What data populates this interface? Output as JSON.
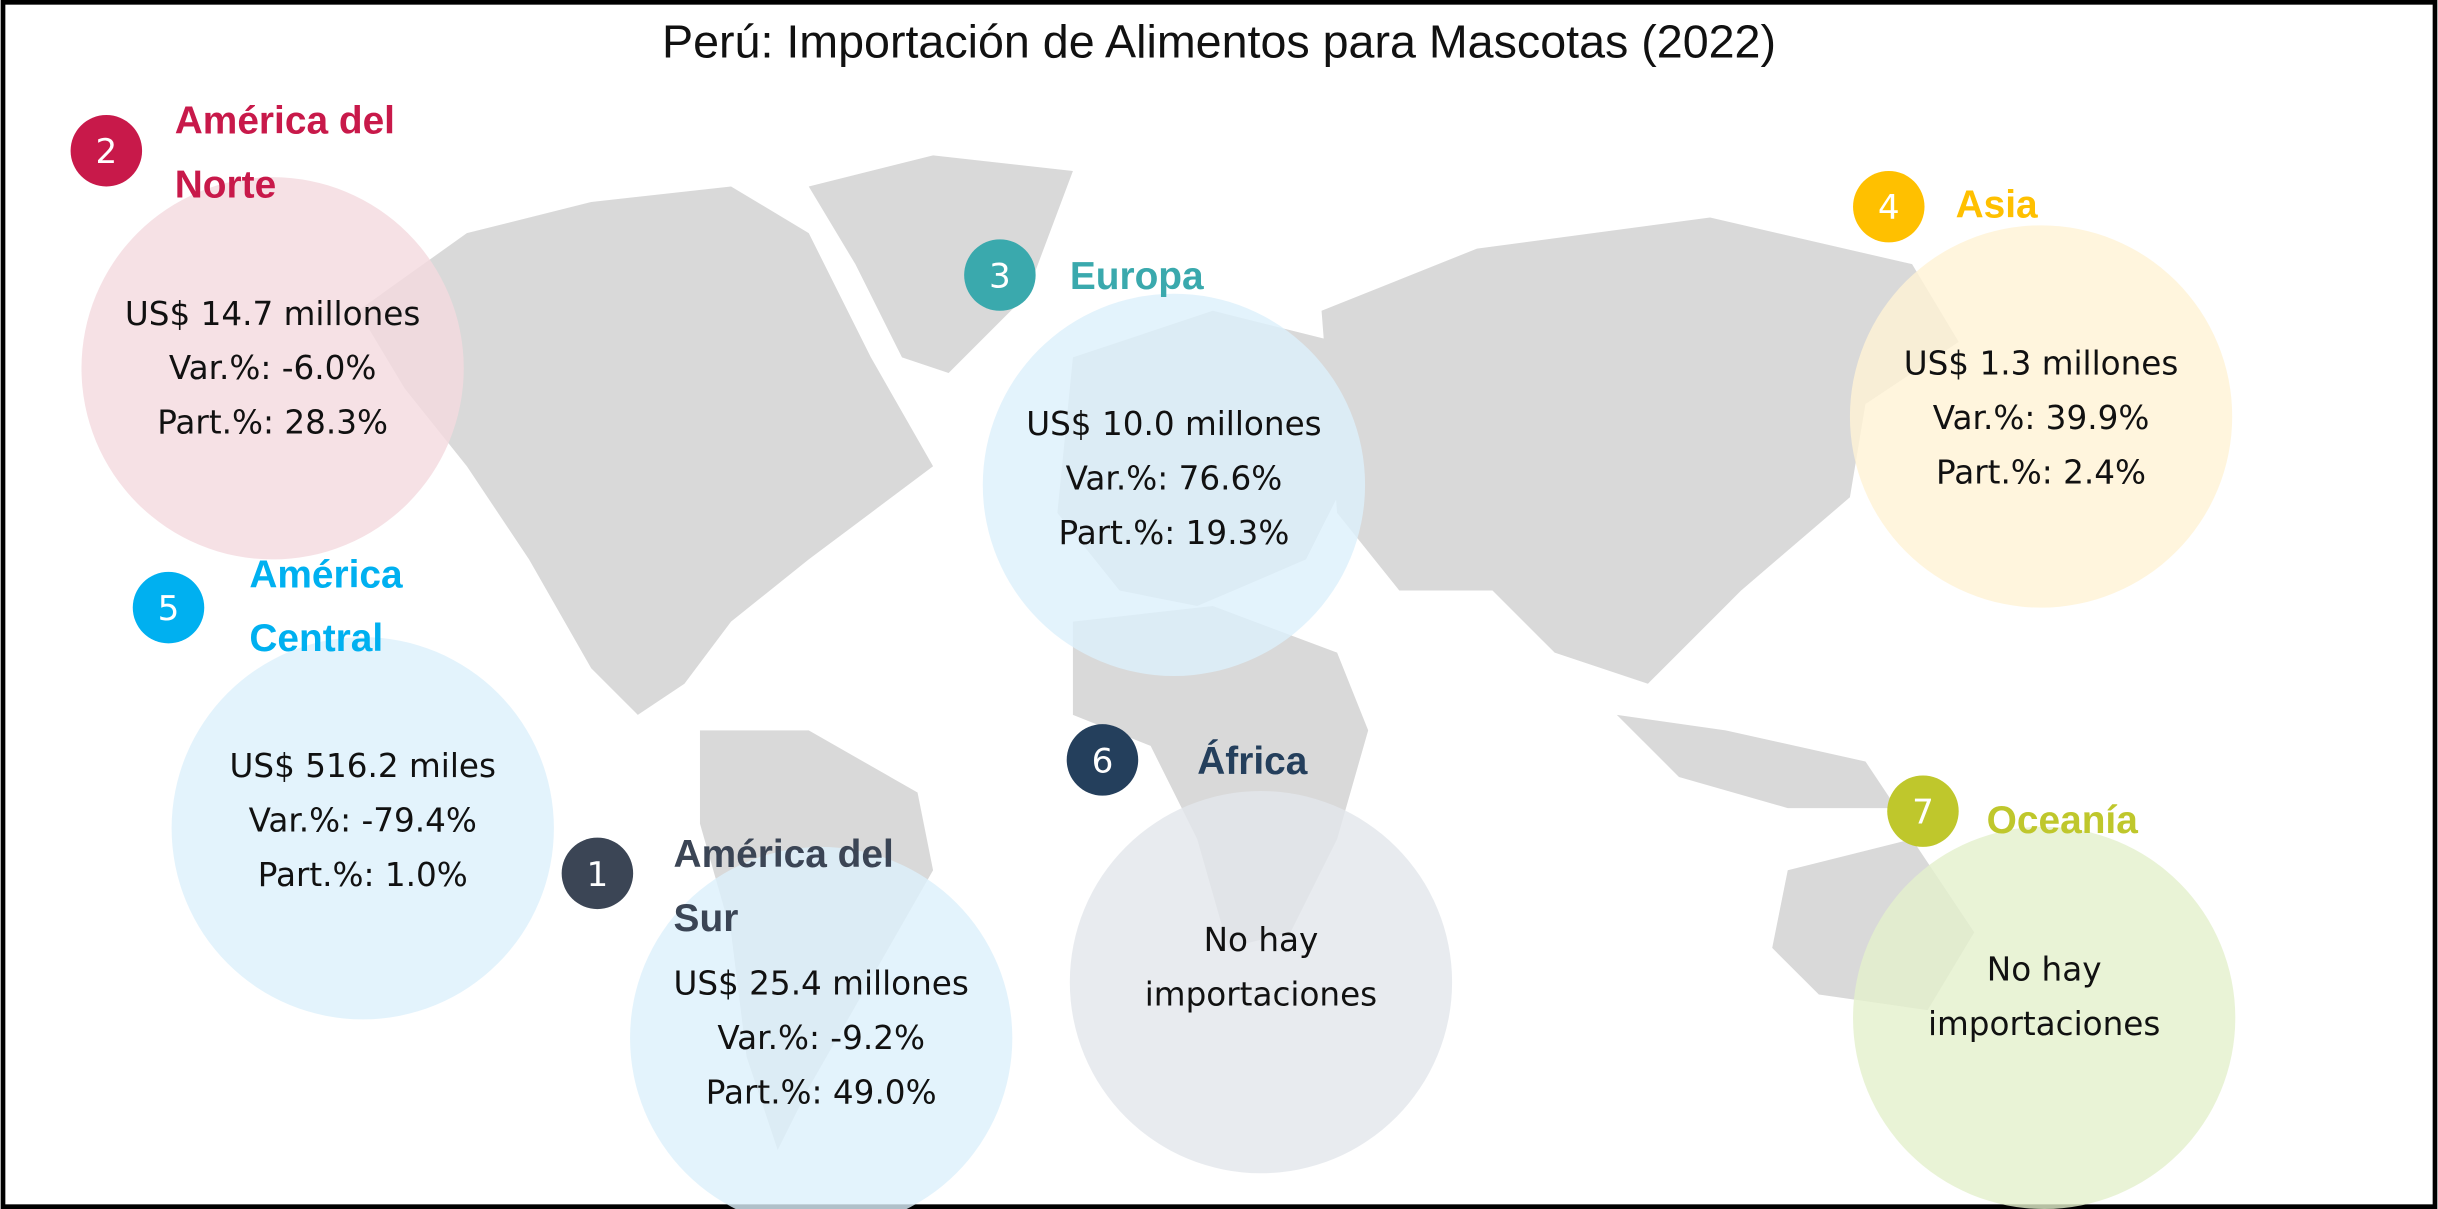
{
  "title": "Perú: Importación de Alimentos para Mascotas (2022)",
  "regions": [
    {
      "rank": 2,
      "name": "América del Norte",
      "color": "#c8194a",
      "fill": "#f4d9df",
      "lines": [
        "US$ 14.7 millones",
        "Var.%: -6.0%",
        "Part.%: 28.3%"
      ]
    },
    {
      "rank": 3,
      "name": "Europa",
      "color": "#3aa9ad",
      "fill": "#dcf0fb",
      "lines": [
        "US$ 10.0 millones",
        "Var.%: 76.6%",
        "Part.%: 19.3%"
      ]
    },
    {
      "rank": 4,
      "name": "Asia",
      "color": "#ffc000",
      "fill": "#fff3d4",
      "lines": [
        "US$ 1.3 millones",
        "Var.%: 39.9%",
        "Part.%: 2.4%"
      ]
    },
    {
      "rank": 5,
      "name": "América Central",
      "color": "#00b0f0",
      "fill": "#dcf0fb",
      "lines": [
        "US$ 516.2 miles",
        "Var.%: -79.4%",
        "Part.%: 1.0%"
      ]
    },
    {
      "rank": 1,
      "name": "América del Sur",
      "color": "#3b4555",
      "fill": "#dcf0fb",
      "lines": [
        "US$  25.4 millones",
        "Var.%: -9.2%",
        "Part.%: 49.0%"
      ]
    },
    {
      "rank": 6,
      "name": "África",
      "color": "#243f5c",
      "fill": "#e2e6eb",
      "lines": [
        "No hay",
        "importaciones"
      ]
    },
    {
      "rank": 7,
      "name": "Oceanía",
      "color": "#bfc72c",
      "fill": "#e3f0cc",
      "lines": [
        "No hay",
        "importaciones"
      ]
    }
  ]
}
